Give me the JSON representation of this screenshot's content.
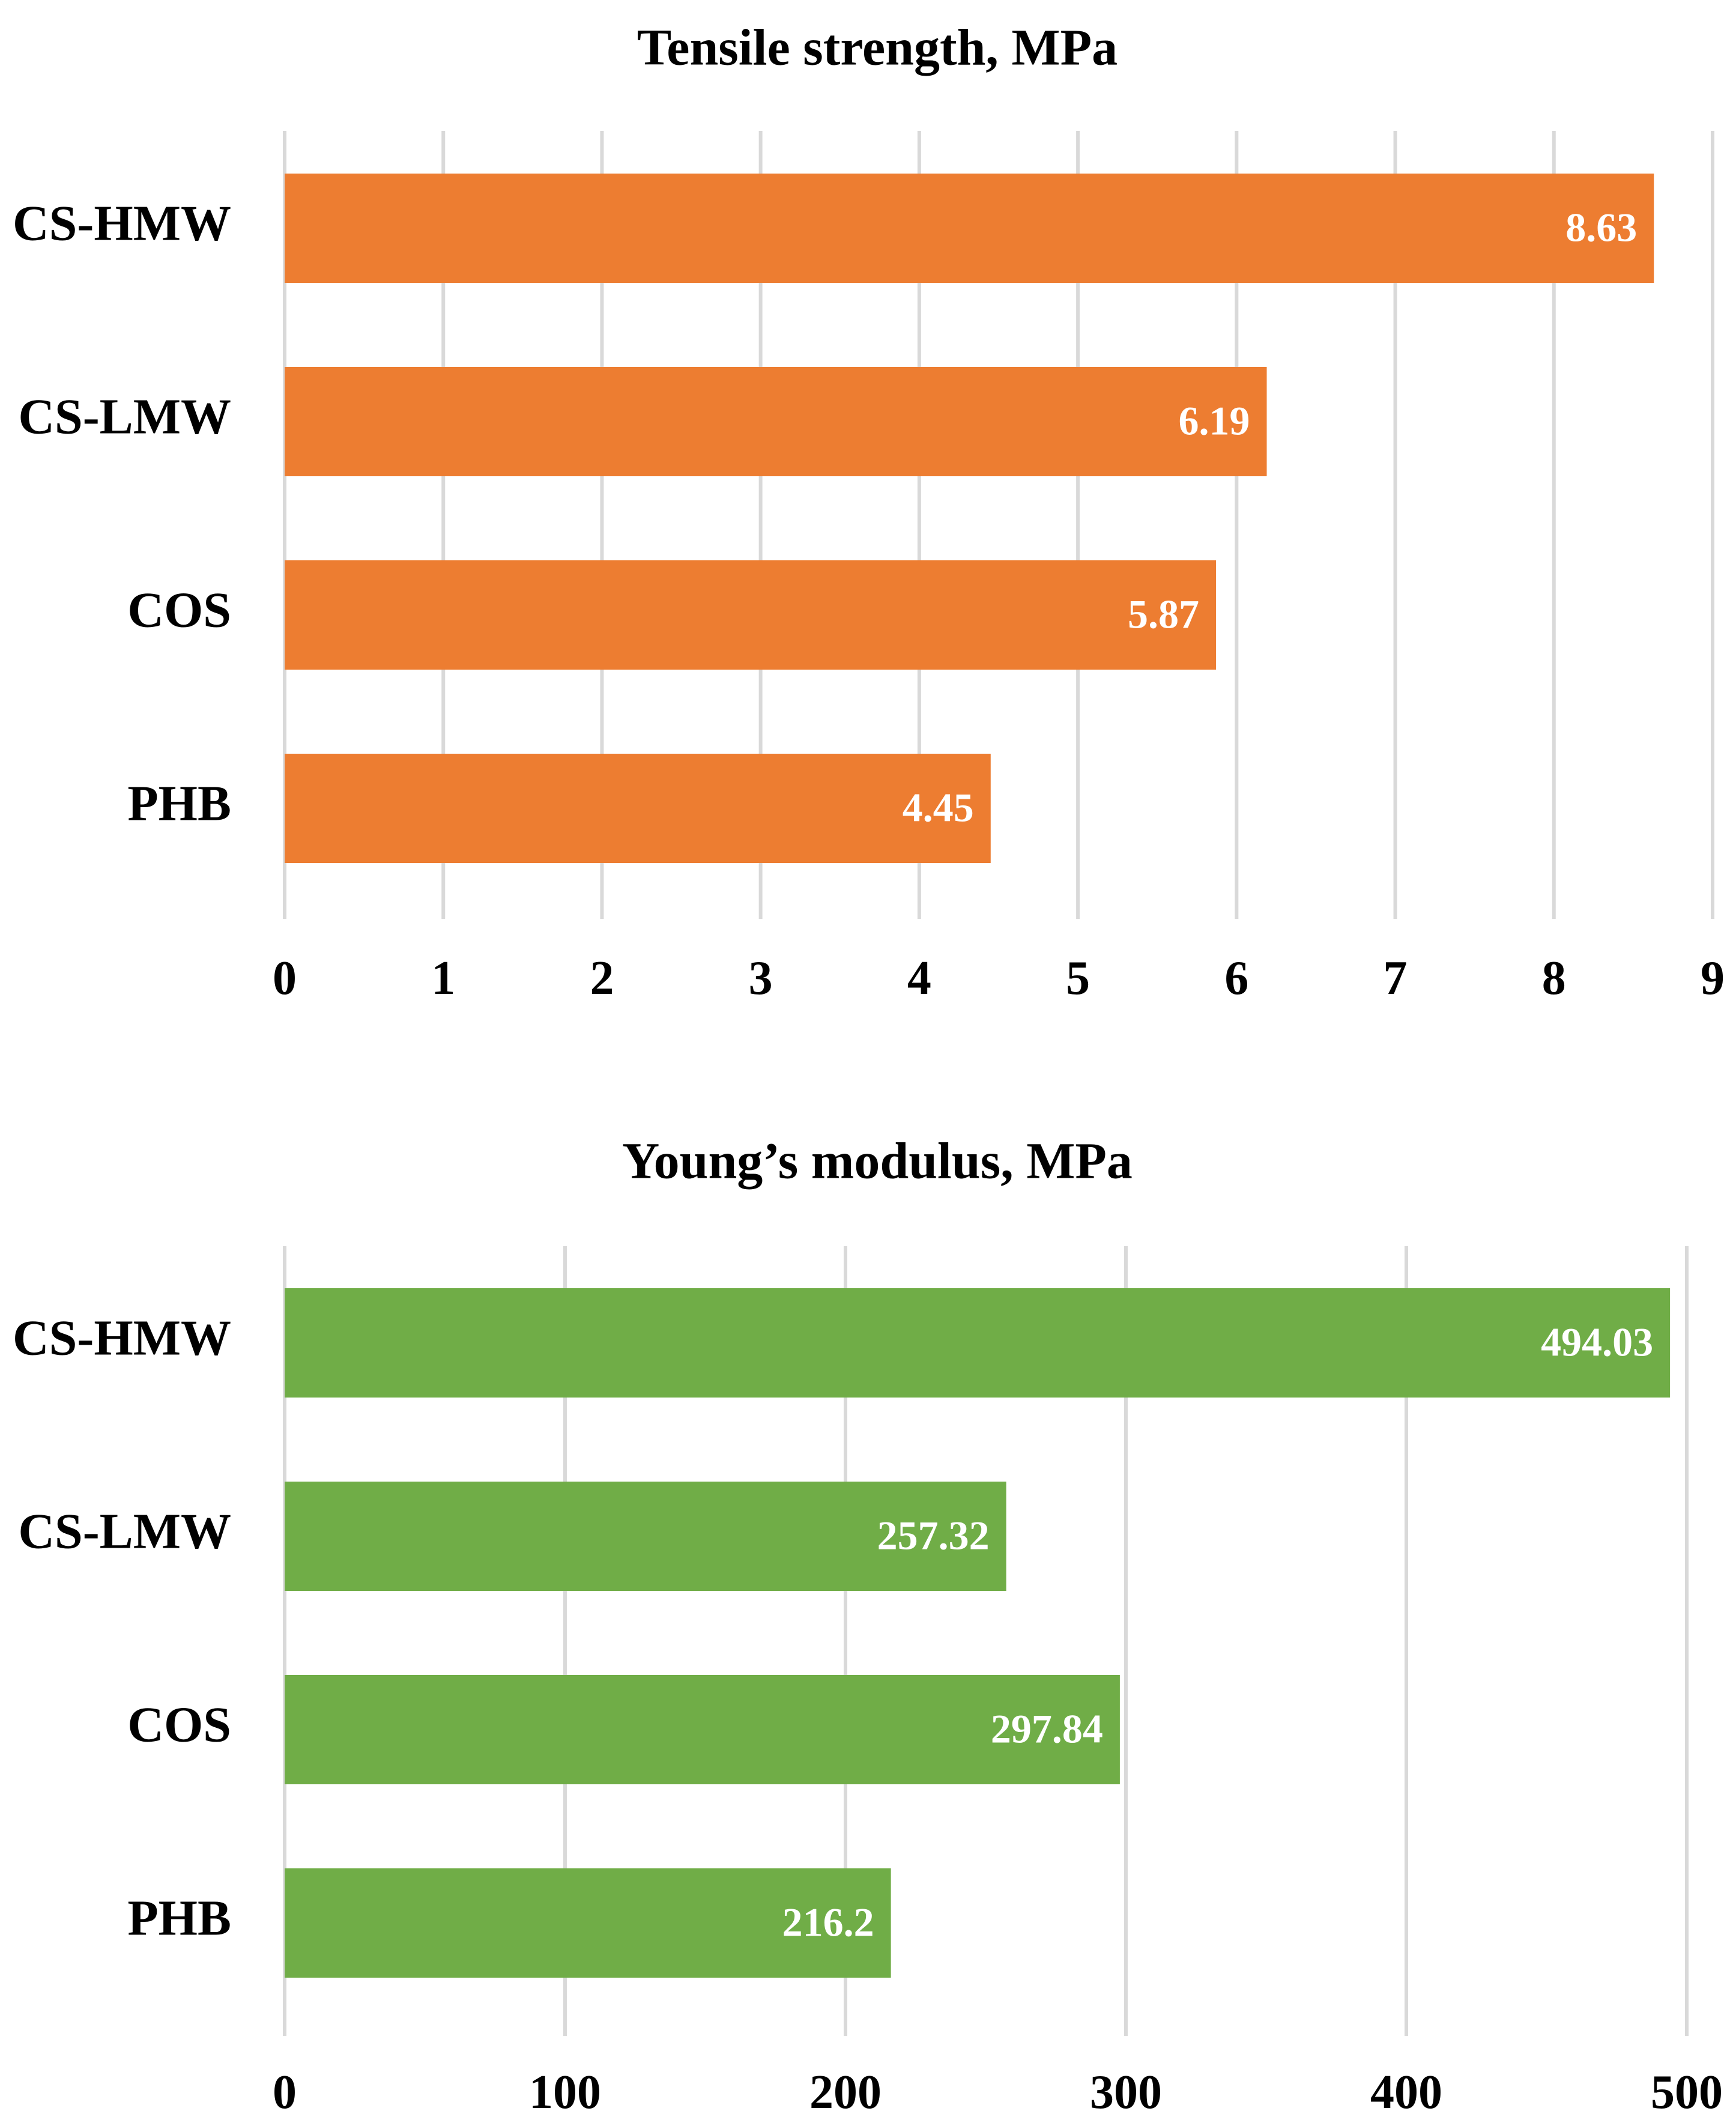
{
  "chart_data": [
    {
      "type": "bar",
      "orientation": "horizontal",
      "title": "Tensile strength, MPa",
      "categories": [
        "CS-HMW",
        "CS-LMW",
        "COS",
        "PHB"
      ],
      "values": [
        8.63,
        6.19,
        5.87,
        4.45
      ],
      "data_labels": [
        "8.63",
        "6.19",
        "5.87",
        "4.45"
      ],
      "xlim": [
        0,
        9
      ],
      "ticks": [
        0,
        1,
        2,
        3,
        4,
        5,
        6,
        7,
        8,
        9
      ],
      "tick_labels": [
        "0",
        "1",
        "2",
        "3",
        "4",
        "5",
        "6",
        "7",
        "8",
        "9"
      ],
      "xlabel": "",
      "ylabel": "",
      "grid": true,
      "color": "#ed7d31"
    },
    {
      "type": "bar",
      "orientation": "horizontal",
      "title": "Young’s modulus, MPa",
      "categories": [
        "CS-HMW",
        "CS-LMW",
        "COS",
        "PHB"
      ],
      "values": [
        494.03,
        257.32,
        297.84,
        216.2
      ],
      "data_labels": [
        "494.03",
        "257.32",
        "297.84",
        "216.2"
      ],
      "xlim": [
        0,
        500
      ],
      "ticks": [
        0,
        100,
        200,
        300,
        400,
        500
      ],
      "tick_labels": [
        "0",
        "100",
        "200",
        "300",
        "400",
        "500"
      ],
      "xlabel": "",
      "ylabel": "",
      "grid": true,
      "color": "#70ad47"
    }
  ]
}
